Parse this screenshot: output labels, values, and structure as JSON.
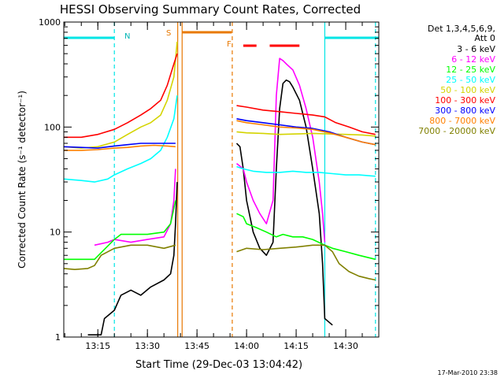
{
  "chart_data": {
    "type": "line",
    "title": "HESSI Observing Summary Count Rates, Corrected",
    "xlabel": "Start Time (29-Dec-03 13:04:42)",
    "ylabel": "Corrected Count Rate (s⁻¹ detector⁻¹)",
    "yscale": "log",
    "ylim": [
      1,
      1000
    ],
    "xlim": [
      "13:04:42",
      "14:40:00"
    ],
    "x_ticks": [
      "13:15",
      "13:30",
      "13:45",
      "14:00",
      "14:15",
      "14:30"
    ],
    "y_ticks": [
      "1",
      "10",
      "100",
      "1000"
    ],
    "legend_header": [
      "Det 1,3,4,5,6,9,",
      "Att 0"
    ],
    "legend_position": "right",
    "footer": "17-Mar-2010 23:38",
    "colors": {
      "axes": "#000000",
      "background": "#ffffff"
    },
    "annotations": {
      "flag_N": "N",
      "flag_S": "S",
      "flag_F": "F",
      "night_color": "#00e5e5",
      "saa_color": "#e87800",
      "flare_color": "#ff0000"
    },
    "bars": {
      "night": [
        [
          "13:04:42",
          "13:20:00"
        ],
        [
          "14:23:40",
          "14:40:00"
        ]
      ],
      "saa": [
        [
          "13:40:30",
          "13:55:30"
        ]
      ],
      "flare": [
        [
          "13:59:00",
          "14:03:00"
        ],
        [
          "14:07:00",
          "14:16:00"
        ]
      ]
    },
    "vlines": [
      {
        "time": "13:20:00",
        "style": "dashed",
        "color": "#00e5e5"
      },
      {
        "time": "13:39:10",
        "style": "solid",
        "color": "#e87800"
      },
      {
        "time": "13:40:30",
        "style": "solid",
        "color": "#e87800"
      },
      {
        "time": "13:55:40",
        "style": "dashed",
        "color": "#e87800"
      },
      {
        "time": "14:23:40",
        "style": "solid",
        "color": "#00e5e5"
      },
      {
        "time": "14:39:00",
        "style": "dashed",
        "color": "#00e5e5"
      }
    ],
    "series": [
      {
        "name": "3 - 6 keV",
        "color": "#000000",
        "segments": [
          [
            [
              "13:12:00",
              1.05
            ],
            [
              "13:16:00",
              1.05
            ],
            [
              "13:17:00",
              1.5
            ],
            [
              "13:20:00",
              1.8
            ],
            [
              "13:22:00",
              2.5
            ],
            [
              "13:25:00",
              2.8
            ],
            [
              "13:28:00",
              2.5
            ],
            [
              "13:31:00",
              3.0
            ],
            [
              "13:35:00",
              3.5
            ],
            [
              "13:37:00",
              4.0
            ],
            [
              "13:38:00",
              6.0
            ],
            [
              "13:38:30",
              12.0
            ],
            [
              "13:39:00",
              30.0
            ]
          ],
          [
            [
              "13:57:00",
              70
            ],
            [
              "13:58:00",
              65
            ],
            [
              "13:59:00",
              40
            ],
            [
              "14:00:00",
              20
            ],
            [
              "14:02:00",
              10
            ],
            [
              "14:04:00",
              7
            ],
            [
              "14:06:00",
              6
            ],
            [
              "14:08:00",
              8
            ],
            [
              "14:09:00",
              40
            ],
            [
              "14:10:00",
              150
            ],
            [
              "14:11:00",
              260
            ],
            [
              "14:12:00",
              280
            ],
            [
              "14:13:00",
              270
            ],
            [
              "14:14:00",
              240
            ],
            [
              "14:16:00",
              180
            ],
            [
              "14:18:00",
              100
            ],
            [
              "14:20:00",
              40
            ],
            [
              "14:22:00",
              15
            ],
            [
              "14:23:00",
              5
            ],
            [
              "14:23:40",
              1.5
            ],
            [
              "14:26:00",
              1.3
            ]
          ]
        ]
      },
      {
        "name": "6 - 12 keV",
        "color": "#ff00ff",
        "segments": [
          [
            [
              "13:14:00",
              7.5
            ],
            [
              "13:18:00",
              8.0
            ],
            [
              "13:20:00",
              8.5
            ],
            [
              "13:25:00",
              8.0
            ],
            [
              "13:30:00",
              8.5
            ],
            [
              "13:35:00",
              9.0
            ],
            [
              "13:37:00",
              12.0
            ],
            [
              "13:38:00",
              20
            ],
            [
              "13:38:30",
              40
            ]
          ],
          [
            [
              "13:57:00",
              45
            ],
            [
              "13:59:00",
              40
            ],
            [
              "14:00:00",
              30
            ],
            [
              "14:02:00",
              20
            ],
            [
              "14:04:00",
              15
            ],
            [
              "14:06:00",
              12
            ],
            [
              "14:08:00",
              20
            ],
            [
              "14:09:00",
              200
            ],
            [
              "14:10:00",
              450
            ],
            [
              "14:11:00",
              430
            ],
            [
              "14:12:00",
              400
            ],
            [
              "14:14:00",
              350
            ],
            [
              "14:16:00",
              250
            ],
            [
              "14:18:00",
              150
            ],
            [
              "14:20:00",
              80
            ],
            [
              "14:22:00",
              30
            ],
            [
              "14:23:00",
              15
            ],
            [
              "14:23:40",
              8
            ]
          ]
        ]
      },
      {
        "name": "12 - 25 keV",
        "color": "#00ff00",
        "segments": [
          [
            [
              "13:04:42",
              5.5
            ],
            [
              "13:10:00",
              5.5
            ],
            [
              "13:14:00",
              5.5
            ],
            [
              "13:20:00",
              8.5
            ],
            [
              "13:22:00",
              9.5
            ],
            [
              "13:25:00",
              9.5
            ],
            [
              "13:30:00",
              9.5
            ],
            [
              "13:35:00",
              10.0
            ],
            [
              "13:37:00",
              12
            ],
            [
              "13:38:30",
              20
            ]
          ],
          [
            [
              "13:57:00",
              15
            ],
            [
              "13:59:00",
              14
            ],
            [
              "14:00:00",
              12
            ],
            [
              "14:03:00",
              11
            ],
            [
              "14:06:00",
              10
            ],
            [
              "14:09:00",
              9
            ],
            [
              "14:11:00",
              9.5
            ],
            [
              "14:14:00",
              9.0
            ],
            [
              "14:17:00",
              9.0
            ],
            [
              "14:20:00",
              8.5
            ],
            [
              "14:23:40",
              7.5
            ],
            [
              "14:26:00",
              7.0
            ],
            [
              "14:30:00",
              6.5
            ],
            [
              "14:34:00",
              6.0
            ],
            [
              "14:39:00",
              5.5
            ]
          ]
        ]
      },
      {
        "name": "25 - 50 keV",
        "color": "#00ffff",
        "segments": [
          [
            [
              "13:04:42",
              32
            ],
            [
              "13:10:00",
              31
            ],
            [
              "13:14:00",
              30
            ],
            [
              "13:18:00",
              32
            ],
            [
              "13:20:00",
              35
            ],
            [
              "13:24:00",
              40
            ],
            [
              "13:28:00",
              45
            ],
            [
              "13:31:00",
              50
            ],
            [
              "13:34:00",
              60
            ],
            [
              "13:36:00",
              80
            ],
            [
              "13:38:00",
              120
            ],
            [
              "13:39:00",
              200
            ]
          ],
          [
            [
              "13:57:00",
              42
            ],
            [
              "13:59:00",
              40
            ],
            [
              "14:02:00",
              38
            ],
            [
              "14:06:00",
              37
            ],
            [
              "14:10:00",
              37
            ],
            [
              "14:14:00",
              38
            ],
            [
              "14:18:00",
              37
            ],
            [
              "14:22:00",
              37
            ],
            [
              "14:26:00",
              36
            ],
            [
              "14:30:00",
              35
            ],
            [
              "14:34:00",
              35
            ],
            [
              "14:39:00",
              34
            ]
          ]
        ]
      },
      {
        "name": "50 - 100 keV",
        "color": "#d4d400",
        "segments": [
          [
            [
              "13:04:42",
              65
            ],
            [
              "13:10:00",
              63
            ],
            [
              "13:15:00",
              65
            ],
            [
              "13:20:00",
              72
            ],
            [
              "13:24:00",
              85
            ],
            [
              "13:28:00",
              100
            ],
            [
              "13:31:00",
              110
            ],
            [
              "13:34:00",
              130
            ],
            [
              "13:36:00",
              180
            ],
            [
              "13:38:00",
              300
            ],
            [
              "13:39:00",
              650
            ]
          ],
          [
            [
              "13:57:00",
              90
            ],
            [
              "14:00:00",
              88
            ],
            [
              "14:05:00",
              87
            ],
            [
              "14:10:00",
              85
            ],
            [
              "14:15:00",
              86
            ],
            [
              "14:20:00",
              87
            ],
            [
              "14:25:00",
              86
            ],
            [
              "14:30:00",
              85
            ],
            [
              "14:35:00",
              84
            ],
            [
              "14:39:00",
              82
            ]
          ]
        ]
      },
      {
        "name": "100 - 300 keV",
        "color": "#ff0000",
        "segments": [
          [
            [
              "13:04:42",
              80
            ],
            [
              "13:10:00",
              80
            ],
            [
              "13:15:00",
              85
            ],
            [
              "13:20:00",
              95
            ],
            [
              "13:24:00",
              110
            ],
            [
              "13:28:00",
              130
            ],
            [
              "13:31:00",
              150
            ],
            [
              "13:34:00",
              180
            ],
            [
              "13:36:00",
              250
            ],
            [
              "13:38:00",
              400
            ],
            [
              "13:39:00",
              500
            ]
          ],
          [
            [
              "13:57:00",
              160
            ],
            [
              "14:00:00",
              155
            ],
            [
              "14:05:00",
              145
            ],
            [
              "14:10:00",
              140
            ],
            [
              "14:15:00",
              135
            ],
            [
              "14:20:00",
              130
            ],
            [
              "14:23:40",
              125
            ],
            [
              "14:27:00",
              110
            ],
            [
              "14:31:00",
              100
            ],
            [
              "14:35:00",
              90
            ],
            [
              "14:39:00",
              85
            ]
          ]
        ]
      },
      {
        "name": "300 - 800 keV",
        "color": "#0000ff",
        "segments": [
          [
            [
              "13:04:42",
              65
            ],
            [
              "13:10:00",
              64
            ],
            [
              "13:15:00",
              63
            ],
            [
              "13:20:00",
              66
            ],
            [
              "13:24:00",
              68
            ],
            [
              "13:28:00",
              70
            ],
            [
              "13:32:00",
              70
            ],
            [
              "13:36:00",
              70
            ],
            [
              "13:38:30",
              70
            ]
          ],
          [
            [
              "13:57:00",
              120
            ],
            [
              "14:00:00",
              115
            ],
            [
              "14:05:00",
              110
            ],
            [
              "14:10:00",
              105
            ],
            [
              "14:15:00",
              100
            ],
            [
              "14:20:00",
              97
            ],
            [
              "14:25:00",
              90
            ],
            [
              "14:30:00",
              80
            ],
            [
              "14:35:00",
              72
            ],
            [
              "14:39:00",
              68
            ]
          ]
        ]
      },
      {
        "name": "800 - 7000 keV",
        "color": "#ff8000",
        "segments": [
          [
            [
              "13:04:42",
              60
            ],
            [
              "13:10:00",
              60
            ],
            [
              "13:15:00",
              61
            ],
            [
              "13:20:00",
              63
            ],
            [
              "13:24:00",
              64
            ],
            [
              "13:28:00",
              66
            ],
            [
              "13:32:00",
              67
            ],
            [
              "13:36:00",
              66
            ],
            [
              "13:38:30",
              65
            ]
          ],
          [
            [
              "13:57:00",
              115
            ],
            [
              "14:00:00",
              110
            ],
            [
              "14:05:00",
              105
            ],
            [
              "14:10:00",
              100
            ],
            [
              "14:15:00",
              98
            ],
            [
              "14:20:00",
              95
            ],
            [
              "14:25:00",
              88
            ],
            [
              "14:30:00",
              80
            ],
            [
              "14:35:00",
              72
            ],
            [
              "14:39:00",
              68
            ]
          ]
        ]
      },
      {
        "name": "7000 - 20000 keV",
        "color": "#808000",
        "segments": [
          [
            [
              "13:04:42",
              4.5
            ],
            [
              "13:08:00",
              4.4
            ],
            [
              "13:12:00",
              4.5
            ],
            [
              "13:14:00",
              4.8
            ],
            [
              "13:16:00",
              6.0
            ],
            [
              "13:20:00",
              7.0
            ],
            [
              "13:25:00",
              7.5
            ],
            [
              "13:30:00",
              7.5
            ],
            [
              "13:35:00",
              7.0
            ],
            [
              "13:38:30",
              7.5
            ]
          ],
          [
            [
              "13:57:00",
              6.5
            ],
            [
              "14:00:00",
              7.0
            ],
            [
              "14:05:00",
              6.8
            ],
            [
              "14:10:00",
              7.0
            ],
            [
              "14:15:00",
              7.2
            ],
            [
              "14:20:00",
              7.5
            ],
            [
              "14:23:40",
              7.5
            ],
            [
              "14:26:00",
              6.5
            ],
            [
              "14:28:00",
              5.0
            ],
            [
              "14:31:00",
              4.2
            ],
            [
              "14:34:00",
              3.8
            ],
            [
              "14:37:00",
              3.6
            ],
            [
              "14:39:00",
              3.5
            ]
          ]
        ]
      }
    ]
  }
}
